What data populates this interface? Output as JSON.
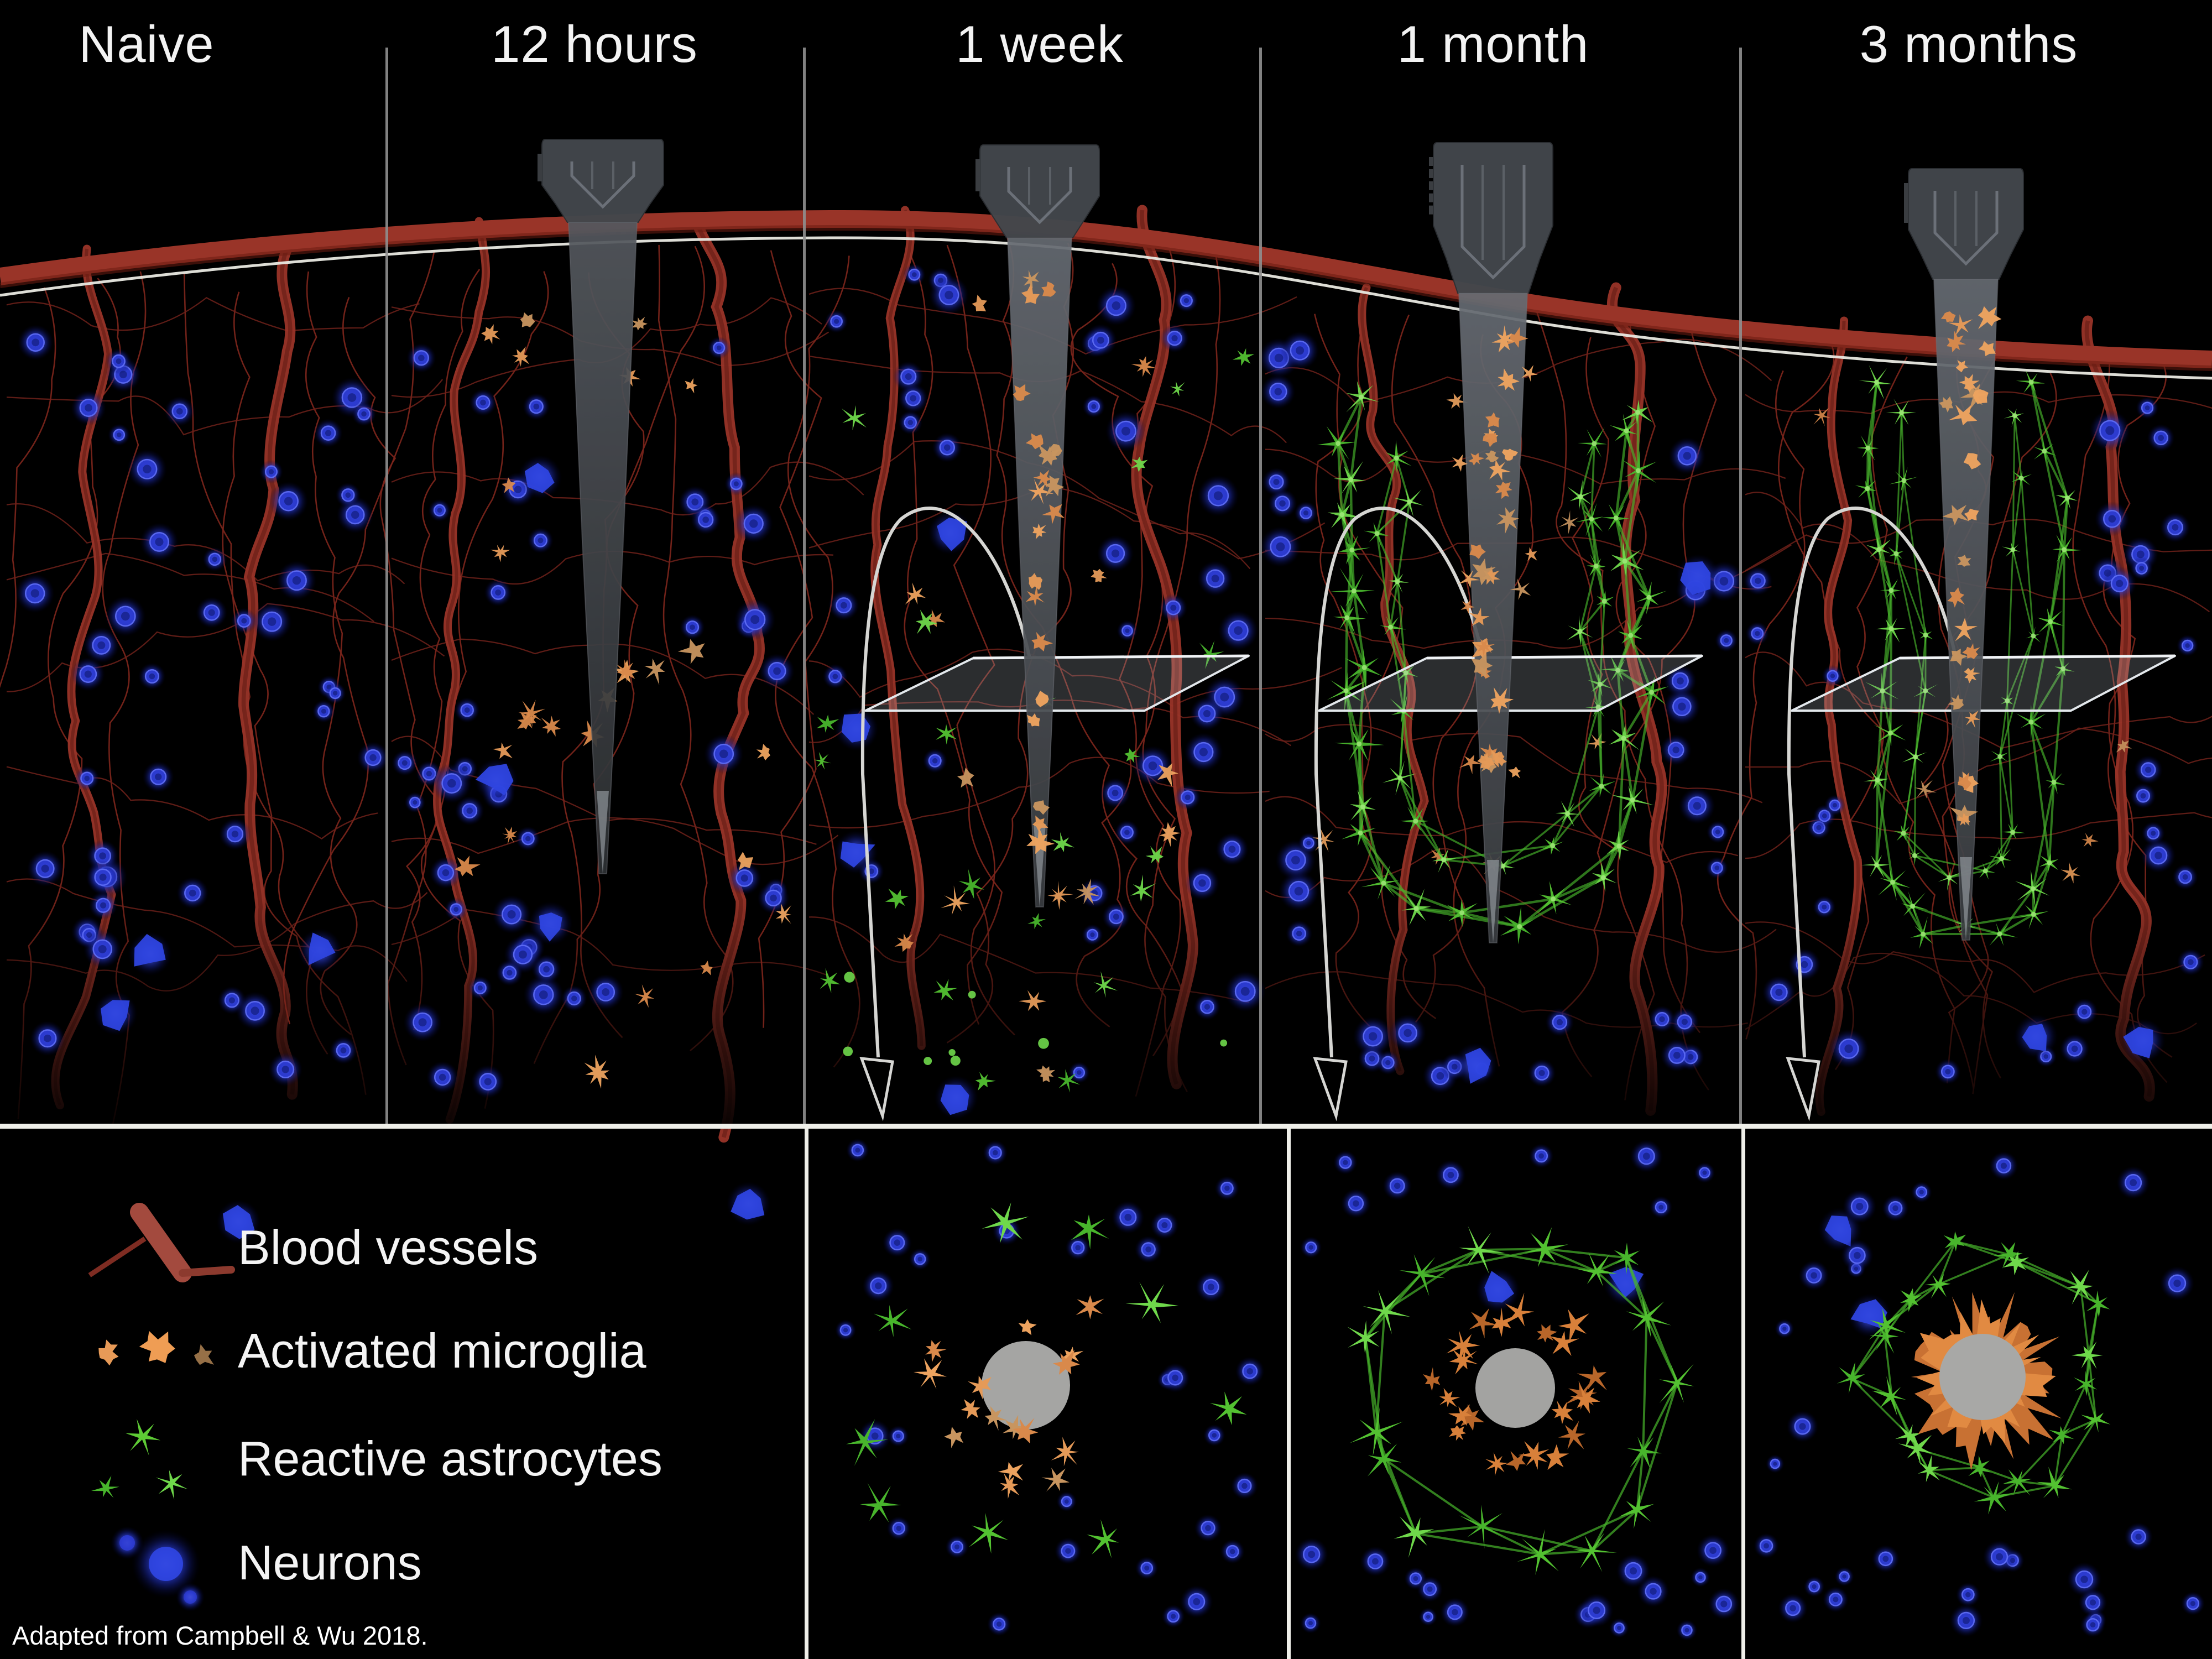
{
  "figure": {
    "caption": "Adapted from Campbell & Wu 2018.",
    "description": "Timeline of the foreign-body response of brain tissue to an implanted neural probe, shown as fluorescence-style illustration with cross-section insets."
  },
  "timepoints": [
    {
      "label": "Naive",
      "features": {
        "probe": false,
        "activated_microglia": "none",
        "reactive_astrocytes": "none",
        "cross_section_inset": false
      }
    },
    {
      "label": "12 hours",
      "features": {
        "probe": true,
        "activated_microglia": "scattered through tissue",
        "reactive_astrocytes": "none",
        "cross_section_inset": false
      }
    },
    {
      "label": "1 week",
      "features": {
        "probe": true,
        "activated_microglia": "coating probe + scattered",
        "reactive_astrocytes": "scattered stars",
        "cross_section_inset": true
      }
    },
    {
      "label": "1 month",
      "features": {
        "probe": true,
        "activated_microglia": "coating probe",
        "reactive_astrocytes": "dense sheath around probe",
        "cross_section_inset": true
      }
    },
    {
      "label": "3 months",
      "features": {
        "probe": true,
        "activated_microglia": "coating probe",
        "reactive_astrocytes": "compact tight sheath",
        "cross_section_inset": true
      }
    }
  ],
  "legend": {
    "items": [
      {
        "icon": "blood-vessel-icon",
        "label": "Blood vessels",
        "color": "#9c372a"
      },
      {
        "icon": "activated-microglia-icon",
        "label": "Activated microglia",
        "color": "#e0883f"
      },
      {
        "icon": "reactive-astrocyte-icon",
        "label": "Reactive astrocytes",
        "color": "#58c636"
      },
      {
        "icon": "neuron-icon",
        "label": "Neurons",
        "color": "#3546e6"
      }
    ]
  },
  "colors": {
    "background": "#000000",
    "blood_vessel": "#993428",
    "capillary": "#7c251b",
    "microglia": "#e0883f",
    "astrocyte": "#55c434",
    "neuron": "#3546e6",
    "probe": "#565a60",
    "surface_line": "#e9e9e2",
    "divider_top": "#8f8f8f",
    "divider_bottom": "#efefe9",
    "label_text": "#f3f3f3"
  }
}
